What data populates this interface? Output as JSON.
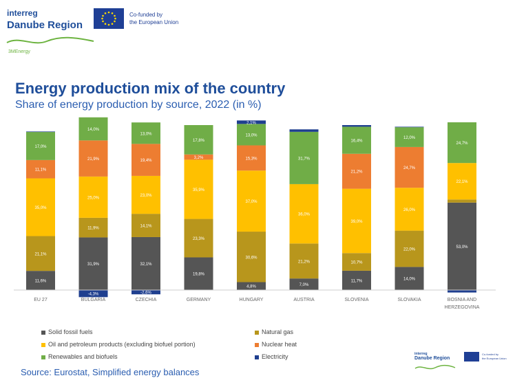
{
  "header": {
    "brand_line1": "interreg",
    "brand_line2": "Danube Region",
    "eu_line1": "Co-funded by",
    "eu_line2": "the European Union",
    "project": "3MEnergy"
  },
  "footer_logo": {
    "brand_line1": "interreg",
    "brand_line2": "Danube Region",
    "eu_line1": "Co-funded by",
    "eu_line2": "the European Union"
  },
  "source": "Source: Eurostat, Simplified energy balances",
  "colors": {
    "title": "#1f4e9a",
    "solid": "#555555",
    "gas": "#b8961c",
    "oil": "#ffc000",
    "nuclear": "#ed7d31",
    "renew": "#70ad47",
    "elec": "#1f3f8f"
  },
  "chart_data": {
    "type": "bar",
    "stacked": true,
    "title": "Energy production mix of the country",
    "subtitle": "Share of energy production by source, 2022 (in %)",
    "categories": [
      "EU 27",
      "BULGARIA",
      "CZECHIA",
      "GERMANY",
      "HUNGARY",
      "AUSTRIA",
      "SLOVENIA",
      "SLOVAKIA",
      "BOSNIA AND HERZEGOVINA"
    ],
    "series": [
      {
        "name": "Solid fossil fuels",
        "key": "solid",
        "values": [
          11.6,
          31.9,
          32.1,
          19.8,
          4.8,
          7.0,
          11.7,
          14.0,
          53.0
        ],
        "labels": [
          "11,6%",
          "31,9%",
          "32,1%",
          "19,8%",
          "4,8%",
          "7,0%",
          "11,7%",
          "14,0%",
          "53,0%"
        ]
      },
      {
        "name": "Natural gas",
        "key": "gas",
        "values": [
          21.1,
          11.9,
          14.1,
          23.3,
          30.6,
          21.2,
          10.7,
          22.0,
          1.9
        ],
        "labels": [
          "21,1%",
          "11,9%",
          "14,1%",
          "23,3%",
          "30,6%",
          "21,2%",
          "10,7%",
          "22,0%",
          "1,9%"
        ]
      },
      {
        "name": "Oil and petroleum products (excluding biofuel portion)",
        "key": "oil",
        "values": [
          35.0,
          25.0,
          23.0,
          35.9,
          37.0,
          36.0,
          39.0,
          26.0,
          22.1
        ],
        "labels": [
          "35,0%",
          "25,0%",
          "23,0%",
          "35,9%",
          "37,0%",
          "36,0%",
          "39,0%",
          "26,0%",
          "22,1%"
        ]
      },
      {
        "name": "Nuclear heat",
        "key": "nuclear",
        "values": [
          11.1,
          21.9,
          19.4,
          3.2,
          15.3,
          0.0,
          21.2,
          24.7,
          0.0
        ],
        "labels": [
          "11,1%",
          "21,9%",
          "19,4%",
          "3,2%",
          "15,3%",
          "",
          "21,2%",
          "24,7%",
          ""
        ]
      },
      {
        "name": "Renewables and biofuels",
        "key": "renew",
        "values": [
          17.0,
          14.0,
          13.0,
          17.8,
          13.0,
          31.7,
          16.4,
          12.0,
          24.7
        ],
        "labels": [
          "17,0%",
          "14,0%",
          "13,0%",
          "17,8%",
          "13,0%",
          "31,7%",
          "16,4%",
          "12,0%",
          "24,7%"
        ]
      },
      {
        "name": "Electricity",
        "key": "elec",
        "values": [
          0.3,
          -4.3,
          -2.6,
          0.0,
          2.1,
          1.5,
          1.0,
          0.3,
          -1.5
        ],
        "labels": [
          "",
          "-4,3%",
          "-2,6%",
          "",
          "2,1%",
          "1,5%",
          "",
          "",
          "-1,5%"
        ]
      }
    ],
    "ylim": [
      -5,
      100
    ],
    "grid": false,
    "legend_position": "bottom"
  }
}
